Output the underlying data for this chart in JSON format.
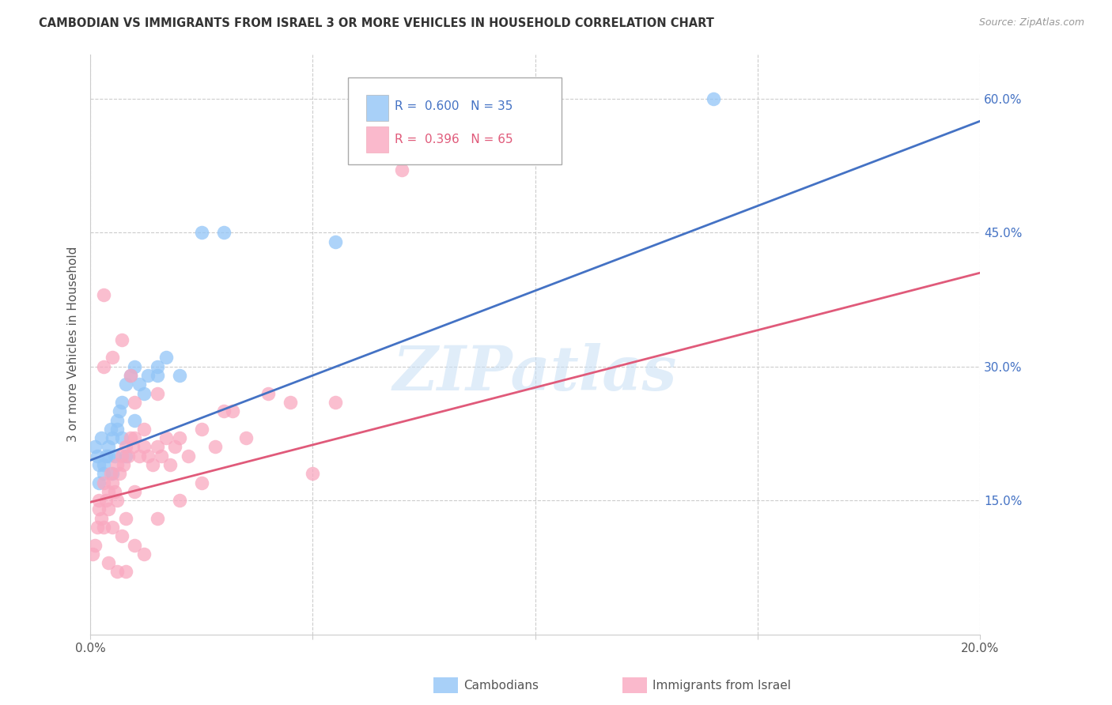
{
  "title": "CAMBODIAN VS IMMIGRANTS FROM ISRAEL 3 OR MORE VEHICLES IN HOUSEHOLD CORRELATION CHART",
  "source": "Source: ZipAtlas.com",
  "ylabel": "3 or more Vehicles in Household",
  "y_ticks_right": [
    0.15,
    0.3,
    0.45,
    0.6
  ],
  "y_tick_labels_right": [
    "15.0%",
    "30.0%",
    "45.0%",
    "60.0%"
  ],
  "xlim": [
    0.0,
    20.0
  ],
  "ylim": [
    0.0,
    0.65
  ],
  "blue_R": 0.6,
  "blue_N": 35,
  "pink_R": 0.396,
  "pink_N": 65,
  "blue_color": "#92c5f7",
  "pink_color": "#f9a8c0",
  "blue_line_color": "#4472c4",
  "pink_line_color": "#e05a7a",
  "watermark": "ZIPatlas",
  "legend_label_blue": "Cambodians",
  "legend_label_pink": "Immigrants from Israel",
  "blue_line_x0": 0.0,
  "blue_line_y0": 0.195,
  "blue_line_x1": 20.0,
  "blue_line_y1": 0.575,
  "pink_line_x0": 0.0,
  "pink_line_y0": 0.148,
  "pink_line_x1": 20.0,
  "pink_line_y1": 0.405,
  "cambodian_x": [
    0.1,
    0.15,
    0.2,
    0.25,
    0.3,
    0.35,
    0.4,
    0.45,
    0.5,
    0.55,
    0.6,
    0.65,
    0.7,
    0.8,
    0.9,
    1.0,
    1.1,
    1.2,
    1.3,
    1.5,
    1.7,
    2.0,
    2.5,
    3.0,
    0.2,
    0.3,
    0.4,
    0.5,
    0.6,
    0.7,
    0.8,
    1.0,
    1.5,
    14.0,
    5.5
  ],
  "cambodian_y": [
    0.21,
    0.2,
    0.19,
    0.22,
    0.18,
    0.2,
    0.21,
    0.23,
    0.22,
    0.2,
    0.24,
    0.25,
    0.26,
    0.28,
    0.29,
    0.3,
    0.28,
    0.27,
    0.29,
    0.3,
    0.31,
    0.29,
    0.45,
    0.45,
    0.17,
    0.19,
    0.2,
    0.18,
    0.23,
    0.22,
    0.2,
    0.24,
    0.29,
    0.6,
    0.44
  ],
  "israel_x": [
    0.05,
    0.1,
    0.15,
    0.2,
    0.25,
    0.3,
    0.35,
    0.4,
    0.45,
    0.5,
    0.55,
    0.6,
    0.65,
    0.7,
    0.75,
    0.8,
    0.85,
    0.9,
    0.95,
    1.0,
    1.1,
    1.2,
    1.3,
    1.4,
    1.5,
    1.6,
    1.7,
    1.8,
    1.9,
    2.0,
    2.2,
    2.5,
    2.8,
    3.0,
    3.5,
    4.0,
    4.5,
    5.0,
    0.3,
    0.5,
    0.7,
    0.9,
    1.0,
    1.2,
    1.5,
    0.2,
    0.4,
    0.6,
    0.8,
    1.0,
    1.5,
    2.0,
    2.5,
    0.3,
    0.5,
    0.7,
    1.0,
    1.2,
    0.4,
    0.6,
    0.8,
    0.3,
    3.2,
    5.5,
    7.0
  ],
  "israel_y": [
    0.09,
    0.1,
    0.12,
    0.14,
    0.13,
    0.17,
    0.15,
    0.16,
    0.18,
    0.17,
    0.16,
    0.19,
    0.18,
    0.2,
    0.19,
    0.21,
    0.2,
    0.22,
    0.21,
    0.22,
    0.2,
    0.21,
    0.2,
    0.19,
    0.21,
    0.2,
    0.22,
    0.19,
    0.21,
    0.22,
    0.2,
    0.23,
    0.21,
    0.25,
    0.22,
    0.27,
    0.26,
    0.18,
    0.3,
    0.31,
    0.33,
    0.29,
    0.26,
    0.23,
    0.27,
    0.15,
    0.14,
    0.15,
    0.13,
    0.16,
    0.13,
    0.15,
    0.17,
    0.12,
    0.12,
    0.11,
    0.1,
    0.09,
    0.08,
    0.07,
    0.07,
    0.38,
    0.25,
    0.26,
    0.52
  ]
}
